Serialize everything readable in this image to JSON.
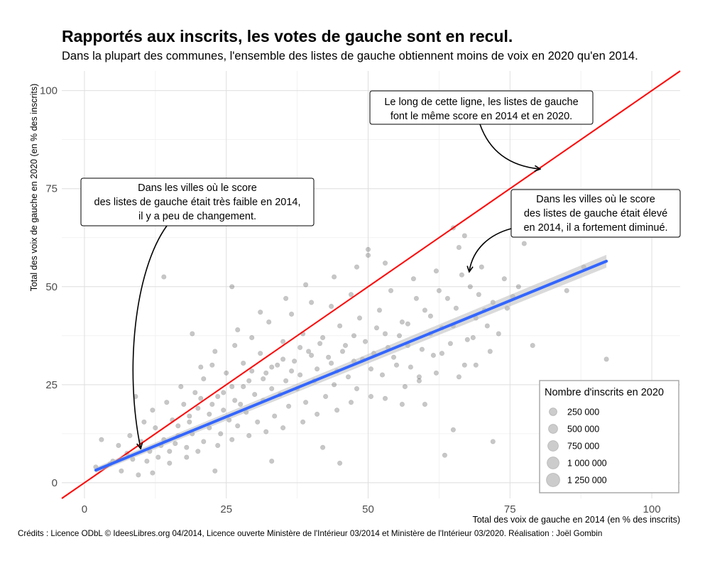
{
  "title": "Rapportés aux inscrits, les votes de gauche sont en recul.",
  "subtitle": "Dans la plupart des communes, l'ensemble des listes de gauche obtiennent moins de voix en 2020 qu'en 2014.",
  "credits": "Crédits : Licence ODbL © IdeesLibres.org 04/2014, Licence ouverte Ministère de l'Intérieur 03/2014 et Ministère de l'Intérieur 03/2020. Réalisation : Joël Gombin",
  "chart_data": {
    "type": "scatter",
    "xlabel": "Total des voix de gauche en 2014 (en % des inscrits)",
    "ylabel": "Total des voix de gauche en 2020 (en % des inscrits)",
    "xlim": [
      -4,
      105
    ],
    "ylim": [
      -4,
      105
    ],
    "x_ticks": [
      0,
      25,
      50,
      75,
      100
    ],
    "y_ticks": [
      0,
      25,
      50,
      75,
      100
    ],
    "grid": true,
    "colors": {
      "points": "#000000",
      "identity_line": "#ff0000",
      "fit_line": "#3366ff",
      "ci_band": "#bbbbbb"
    },
    "identity_line": {
      "from": [
        -4,
        -4
      ],
      "to": [
        105,
        105
      ]
    },
    "fit_line": {
      "x_start": 2,
      "y_start": 3.2,
      "x_end": 92,
      "y_end": 56.5
    },
    "points": [
      [
        2.0,
        4.0
      ],
      [
        4.5,
        4.8
      ],
      [
        6.0,
        9.5
      ],
      [
        8.5,
        6.0
      ],
      [
        10.0,
        10.5
      ],
      [
        11.5,
        8.0
      ],
      [
        12.5,
        14.0
      ],
      [
        14.0,
        11.0
      ],
      [
        15.5,
        16.0
      ],
      [
        16.5,
        12.0
      ],
      [
        17.5,
        20.0
      ],
      [
        18.5,
        15.5
      ],
      [
        19.5,
        23.0
      ],
      [
        20.0,
        19.0
      ],
      [
        21.0,
        26.5
      ],
      [
        22.0,
        14.0
      ],
      [
        22.5,
        30.0
      ],
      [
        23.5,
        22.0
      ],
      [
        24.5,
        18.5
      ],
      [
        25.0,
        28.0
      ],
      [
        26.0,
        24.5
      ],
      [
        26.5,
        35.0
      ],
      [
        27.5,
        20.0
      ],
      [
        28.0,
        30.5
      ],
      [
        29.0,
        26.0
      ],
      [
        29.5,
        37.0
      ],
      [
        30.0,
        22.5
      ],
      [
        31.0,
        33.0
      ],
      [
        32.0,
        28.0
      ],
      [
        32.5,
        41.0
      ],
      [
        33.0,
        24.0
      ],
      [
        34.0,
        30.0
      ],
      [
        35.0,
        36.0
      ],
      [
        35.5,
        26.0
      ],
      [
        36.5,
        43.0
      ],
      [
        37.0,
        31.0
      ],
      [
        38.0,
        27.5
      ],
      [
        38.5,
        38.0
      ],
      [
        39.5,
        33.5
      ],
      [
        40.0,
        46.0
      ],
      [
        41.0,
        29.0
      ],
      [
        42.0,
        37.0
      ],
      [
        43.0,
        32.0
      ],
      [
        43.5,
        45.0
      ],
      [
        44.5,
        28.5
      ],
      [
        45.0,
        40.0
      ],
      [
        46.0,
        35.0
      ],
      [
        47.0,
        48.0
      ],
      [
        47.5,
        31.0
      ],
      [
        48.5,
        42.0
      ],
      [
        49.5,
        36.0
      ],
      [
        50.0,
        58.0
      ],
      [
        51.0,
        33.0
      ],
      [
        52.0,
        44.0
      ],
      [
        53.0,
        38.0
      ],
      [
        54.0,
        49.0
      ],
      [
        55.0,
        30.0
      ],
      [
        56.0,
        41.0
      ],
      [
        57.0,
        35.0
      ],
      [
        58.0,
        52.0
      ],
      [
        59.0,
        27.0
      ],
      [
        60.0,
        44.0
      ],
      [
        61.0,
        38.0
      ],
      [
        62.0,
        54.0
      ],
      [
        63.0,
        33.0
      ],
      [
        64.0,
        47.0
      ],
      [
        65.0,
        40.0
      ],
      [
        66.0,
        60.0
      ],
      [
        67.0,
        30.0
      ],
      [
        68.0,
        50.0
      ],
      [
        69.0,
        42.0
      ],
      [
        70.0,
        55.0
      ],
      [
        72.0,
        46.0
      ],
      [
        74.0,
        52.0
      ],
      [
        77.5,
        61.0
      ],
      [
        79.0,
        35.0
      ],
      [
        85.0,
        49.0
      ],
      [
        88.0,
        55.0
      ],
      [
        92.0,
        31.5
      ],
      [
        14.0,
        52.5
      ],
      [
        26.0,
        50.0
      ],
      [
        50.0,
        59.5
      ],
      [
        65.0,
        65.0
      ],
      [
        67.0,
        63.0
      ],
      [
        3.0,
        11.0
      ],
      [
        9.0,
        22.0
      ],
      [
        19.0,
        38.0
      ],
      [
        23.0,
        3.0
      ],
      [
        45.0,
        5.0
      ],
      [
        42.0,
        9.0
      ],
      [
        33.0,
        5.5
      ],
      [
        56.0,
        20.0
      ],
      [
        60.0,
        20.0
      ],
      [
        63.5,
        7.0
      ],
      [
        65.0,
        13.5
      ],
      [
        72.0,
        10.5
      ],
      [
        6.5,
        3.0
      ],
      [
        9.5,
        2.0
      ],
      [
        12.0,
        2.5
      ],
      [
        5.0,
        5.5
      ],
      [
        7.5,
        7.5
      ],
      [
        11.0,
        5.5
      ],
      [
        13.0,
        6.5
      ],
      [
        15.0,
        8.0
      ],
      [
        16.0,
        10.0
      ],
      [
        18.0,
        9.0
      ],
      [
        19.0,
        12.5
      ],
      [
        21.0,
        10.5
      ],
      [
        22.0,
        17.5
      ],
      [
        24.0,
        12.5
      ],
      [
        25.5,
        16.0
      ],
      [
        27.0,
        14.5
      ],
      [
        28.5,
        18.0
      ],
      [
        30.5,
        15.5
      ],
      [
        31.5,
        21.0
      ],
      [
        33.5,
        17.0
      ],
      [
        34.5,
        22.5
      ],
      [
        36.0,
        19.5
      ],
      [
        37.5,
        24.0
      ],
      [
        39.0,
        20.5
      ],
      [
        40.5,
        26.0
      ],
      [
        42.5,
        22.0
      ],
      [
        44.0,
        25.0
      ],
      [
        46.5,
        27.0
      ],
      [
        48.0,
        24.0
      ],
      [
        50.5,
        29.0
      ],
      [
        52.5,
        27.5
      ],
      [
        54.5,
        32.0
      ],
      [
        57.5,
        29.5
      ],
      [
        61.5,
        32.5
      ],
      [
        64.5,
        35.5
      ],
      [
        68.5,
        37.0
      ],
      [
        71.0,
        40.0
      ],
      [
        12.0,
        18.5
      ],
      [
        14.5,
        20.5
      ],
      [
        17.0,
        24.5
      ],
      [
        20.5,
        29.5
      ],
      [
        23.0,
        33.5
      ],
      [
        27.0,
        39.0
      ],
      [
        31.0,
        43.5
      ],
      [
        35.5,
        47.0
      ],
      [
        39.0,
        50.5
      ],
      [
        44.0,
        52.5
      ],
      [
        48.0,
        55.0
      ],
      [
        53.0,
        56.0
      ],
      [
        58.5,
        47.0
      ],
      [
        62.5,
        49.0
      ],
      [
        66.5,
        53.0
      ],
      [
        69.5,
        48.0
      ],
      [
        8.0,
        12.0
      ],
      [
        10.5,
        15.5
      ],
      [
        13.5,
        9.5
      ],
      [
        16.5,
        14.5
      ],
      [
        18.5,
        17.0
      ],
      [
        20.5,
        21.5
      ],
      [
        22.5,
        20.0
      ],
      [
        24.5,
        23.0
      ],
      [
        26.5,
        21.0
      ],
      [
        28.0,
        24.5
      ],
      [
        29.5,
        28.5
      ],
      [
        31.5,
        26.5
      ],
      [
        33.0,
        29.5
      ],
      [
        35.0,
        31.5
      ],
      [
        36.5,
        28.5
      ],
      [
        38.0,
        34.5
      ],
      [
        40.0,
        32.5
      ],
      [
        41.5,
        35.5
      ],
      [
        43.5,
        30.5
      ],
      [
        45.5,
        33.5
      ],
      [
        47.5,
        37.5
      ],
      [
        49.0,
        31.5
      ],
      [
        51.5,
        39.5
      ],
      [
        53.5,
        34.5
      ],
      [
        55.5,
        37.5
      ],
      [
        57.0,
        40.5
      ],
      [
        59.5,
        34.0
      ],
      [
        61.0,
        42.5
      ],
      [
        63.0,
        39.5
      ],
      [
        65.5,
        44.5
      ],
      [
        67.5,
        36.5
      ],
      [
        70.5,
        44.0
      ],
      [
        15.0,
        5.0
      ],
      [
        18.0,
        6.5
      ],
      [
        20.0,
        8.0
      ],
      [
        23.5,
        9.5
      ],
      [
        26.0,
        11.0
      ],
      [
        29.0,
        12.0
      ],
      [
        32.0,
        13.0
      ],
      [
        35.0,
        14.0
      ],
      [
        38.5,
        15.5
      ],
      [
        41.0,
        17.5
      ],
      [
        44.5,
        18.5
      ],
      [
        47.0,
        20.5
      ],
      [
        50.5,
        22.0
      ],
      [
        53.0,
        21.5
      ],
      [
        56.5,
        24.5
      ],
      [
        59.0,
        26.0
      ],
      [
        62.0,
        28.0
      ],
      [
        66.0,
        27.0
      ],
      [
        69.0,
        30.0
      ],
      [
        71.5,
        33.5
      ],
      [
        73.0,
        38.0
      ],
      [
        74.5,
        44.5
      ],
      [
        75.5,
        47.5
      ],
      [
        76.5,
        50.0
      ]
    ],
    "legend": {
      "title": "Nombre d'inscrits en 2020",
      "position": "bottom-right",
      "items": [
        "250 000",
        "500 000",
        "750 000",
        "1 000 000",
        "1 250 000"
      ]
    },
    "annotations": [
      {
        "lines": [
          "Le long de cette ligne, les listes de gauche",
          "font le même score en 2014 et en 2020."
        ]
      },
      {
        "lines": [
          "Dans les villes où le score",
          "des listes de gauche était très faible en 2014,",
          "il y a peu de changement."
        ]
      },
      {
        "lines": [
          "Dans les villes où le score",
          "des listes de gauche était élevé",
          "en 2014, il a fortement diminué."
        ]
      }
    ]
  }
}
